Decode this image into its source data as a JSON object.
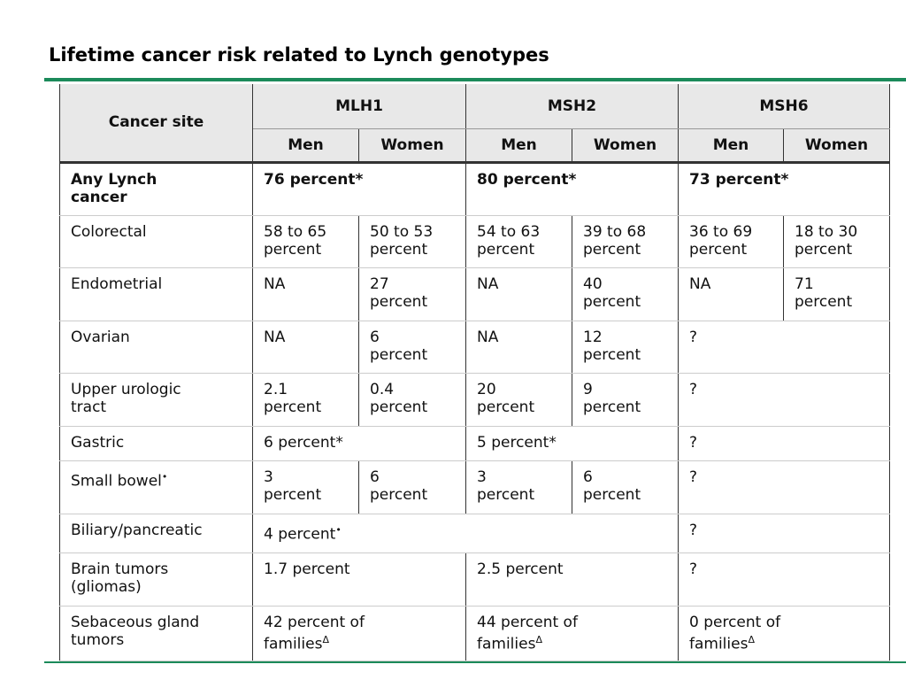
{
  "title": "Lifetime cancer risk related to Lynch genotypes",
  "table": {
    "site_header": "Cancer site",
    "genes": [
      "MLH1",
      "MSH2",
      "MSH6"
    ],
    "subheaders": [
      "Men",
      "Women",
      "Men",
      "Women",
      "Men",
      "Women"
    ],
    "rows": [
      {
        "site": [
          "Any Lynch",
          "cancer"
        ],
        "bold": true,
        "cells": [
          {
            "lines": [
              "76 percent*"
            ],
            "span": 2
          },
          {
            "lines": [
              "80 percent*"
            ],
            "span": 2
          },
          {
            "lines": [
              "73 percent*"
            ],
            "span": 2
          }
        ]
      },
      {
        "site": [
          "Colorectal"
        ],
        "cells": [
          {
            "lines": [
              "58 to 65",
              "percent"
            ]
          },
          {
            "lines": [
              "50 to 53",
              "percent"
            ]
          },
          {
            "lines": [
              "54 to 63",
              "percent"
            ]
          },
          {
            "lines": [
              "39 to 68",
              "percent"
            ]
          },
          {
            "lines": [
              "36 to 69",
              "percent"
            ]
          },
          {
            "lines": [
              "18 to 30",
              "percent"
            ]
          }
        ]
      },
      {
        "site": [
          "Endometrial"
        ],
        "cells": [
          {
            "lines": [
              "NA"
            ]
          },
          {
            "lines": [
              "27",
              "percent"
            ]
          },
          {
            "lines": [
              "NA"
            ]
          },
          {
            "lines": [
              "40",
              "percent"
            ]
          },
          {
            "lines": [
              "NA"
            ]
          },
          {
            "lines": [
              "71",
              "percent"
            ]
          }
        ]
      },
      {
        "site": [
          "Ovarian"
        ],
        "cells": [
          {
            "lines": [
              "NA"
            ]
          },
          {
            "lines": [
              "6",
              "percent"
            ]
          },
          {
            "lines": [
              "NA"
            ]
          },
          {
            "lines": [
              "12",
              "percent"
            ]
          },
          {
            "lines": [
              "?"
            ],
            "span": 2
          }
        ]
      },
      {
        "site": [
          "Upper urologic",
          "tract"
        ],
        "cells": [
          {
            "lines": [
              "2.1",
              "percent"
            ]
          },
          {
            "lines": [
              "0.4",
              "percent"
            ]
          },
          {
            "lines": [
              "20",
              "percent"
            ]
          },
          {
            "lines": [
              "9",
              "percent"
            ]
          },
          {
            "lines": [
              "?"
            ],
            "span": 2
          }
        ]
      },
      {
        "site": [
          "Gastric"
        ],
        "cells": [
          {
            "lines": [
              "6 percent*"
            ],
            "span": 2
          },
          {
            "lines": [
              "5 percent*"
            ],
            "span": 2
          },
          {
            "lines": [
              "?"
            ],
            "span": 2
          }
        ]
      },
      {
        "site": [
          "Small bowel"
        ],
        "site_mark": "•",
        "cells": [
          {
            "lines": [
              "3",
              "percent"
            ]
          },
          {
            "lines": [
              "6",
              "percent"
            ]
          },
          {
            "lines": [
              "3",
              "percent"
            ]
          },
          {
            "lines": [
              "6",
              "percent"
            ]
          },
          {
            "lines": [
              "?"
            ],
            "span": 2
          }
        ]
      },
      {
        "site": [
          "Biliary/pancreatic"
        ],
        "cells": [
          {
            "lines": [
              "4 percent"
            ],
            "mark": "•",
            "span": 4
          },
          {
            "lines": [
              "?"
            ],
            "span": 2
          }
        ]
      },
      {
        "site": [
          "Brain tumors",
          "(gliomas)"
        ],
        "cells": [
          {
            "lines": [
              "1.7 percent"
            ],
            "span": 2
          },
          {
            "lines": [
              "2.5 percent"
            ],
            "span": 2
          },
          {
            "lines": [
              "?"
            ],
            "span": 2
          }
        ]
      },
      {
        "site": [
          "Sebaceous gland",
          "tumors"
        ],
        "cells": [
          {
            "lines": [
              "42 percent of",
              "families"
            ],
            "mark": "Δ",
            "span": 2
          },
          {
            "lines": [
              "44 percent of",
              "families"
            ],
            "mark": "Δ",
            "span": 2
          },
          {
            "lines": [
              "0 percent of",
              "families"
            ],
            "mark": "Δ",
            "span": 2
          }
        ]
      }
    ]
  }
}
